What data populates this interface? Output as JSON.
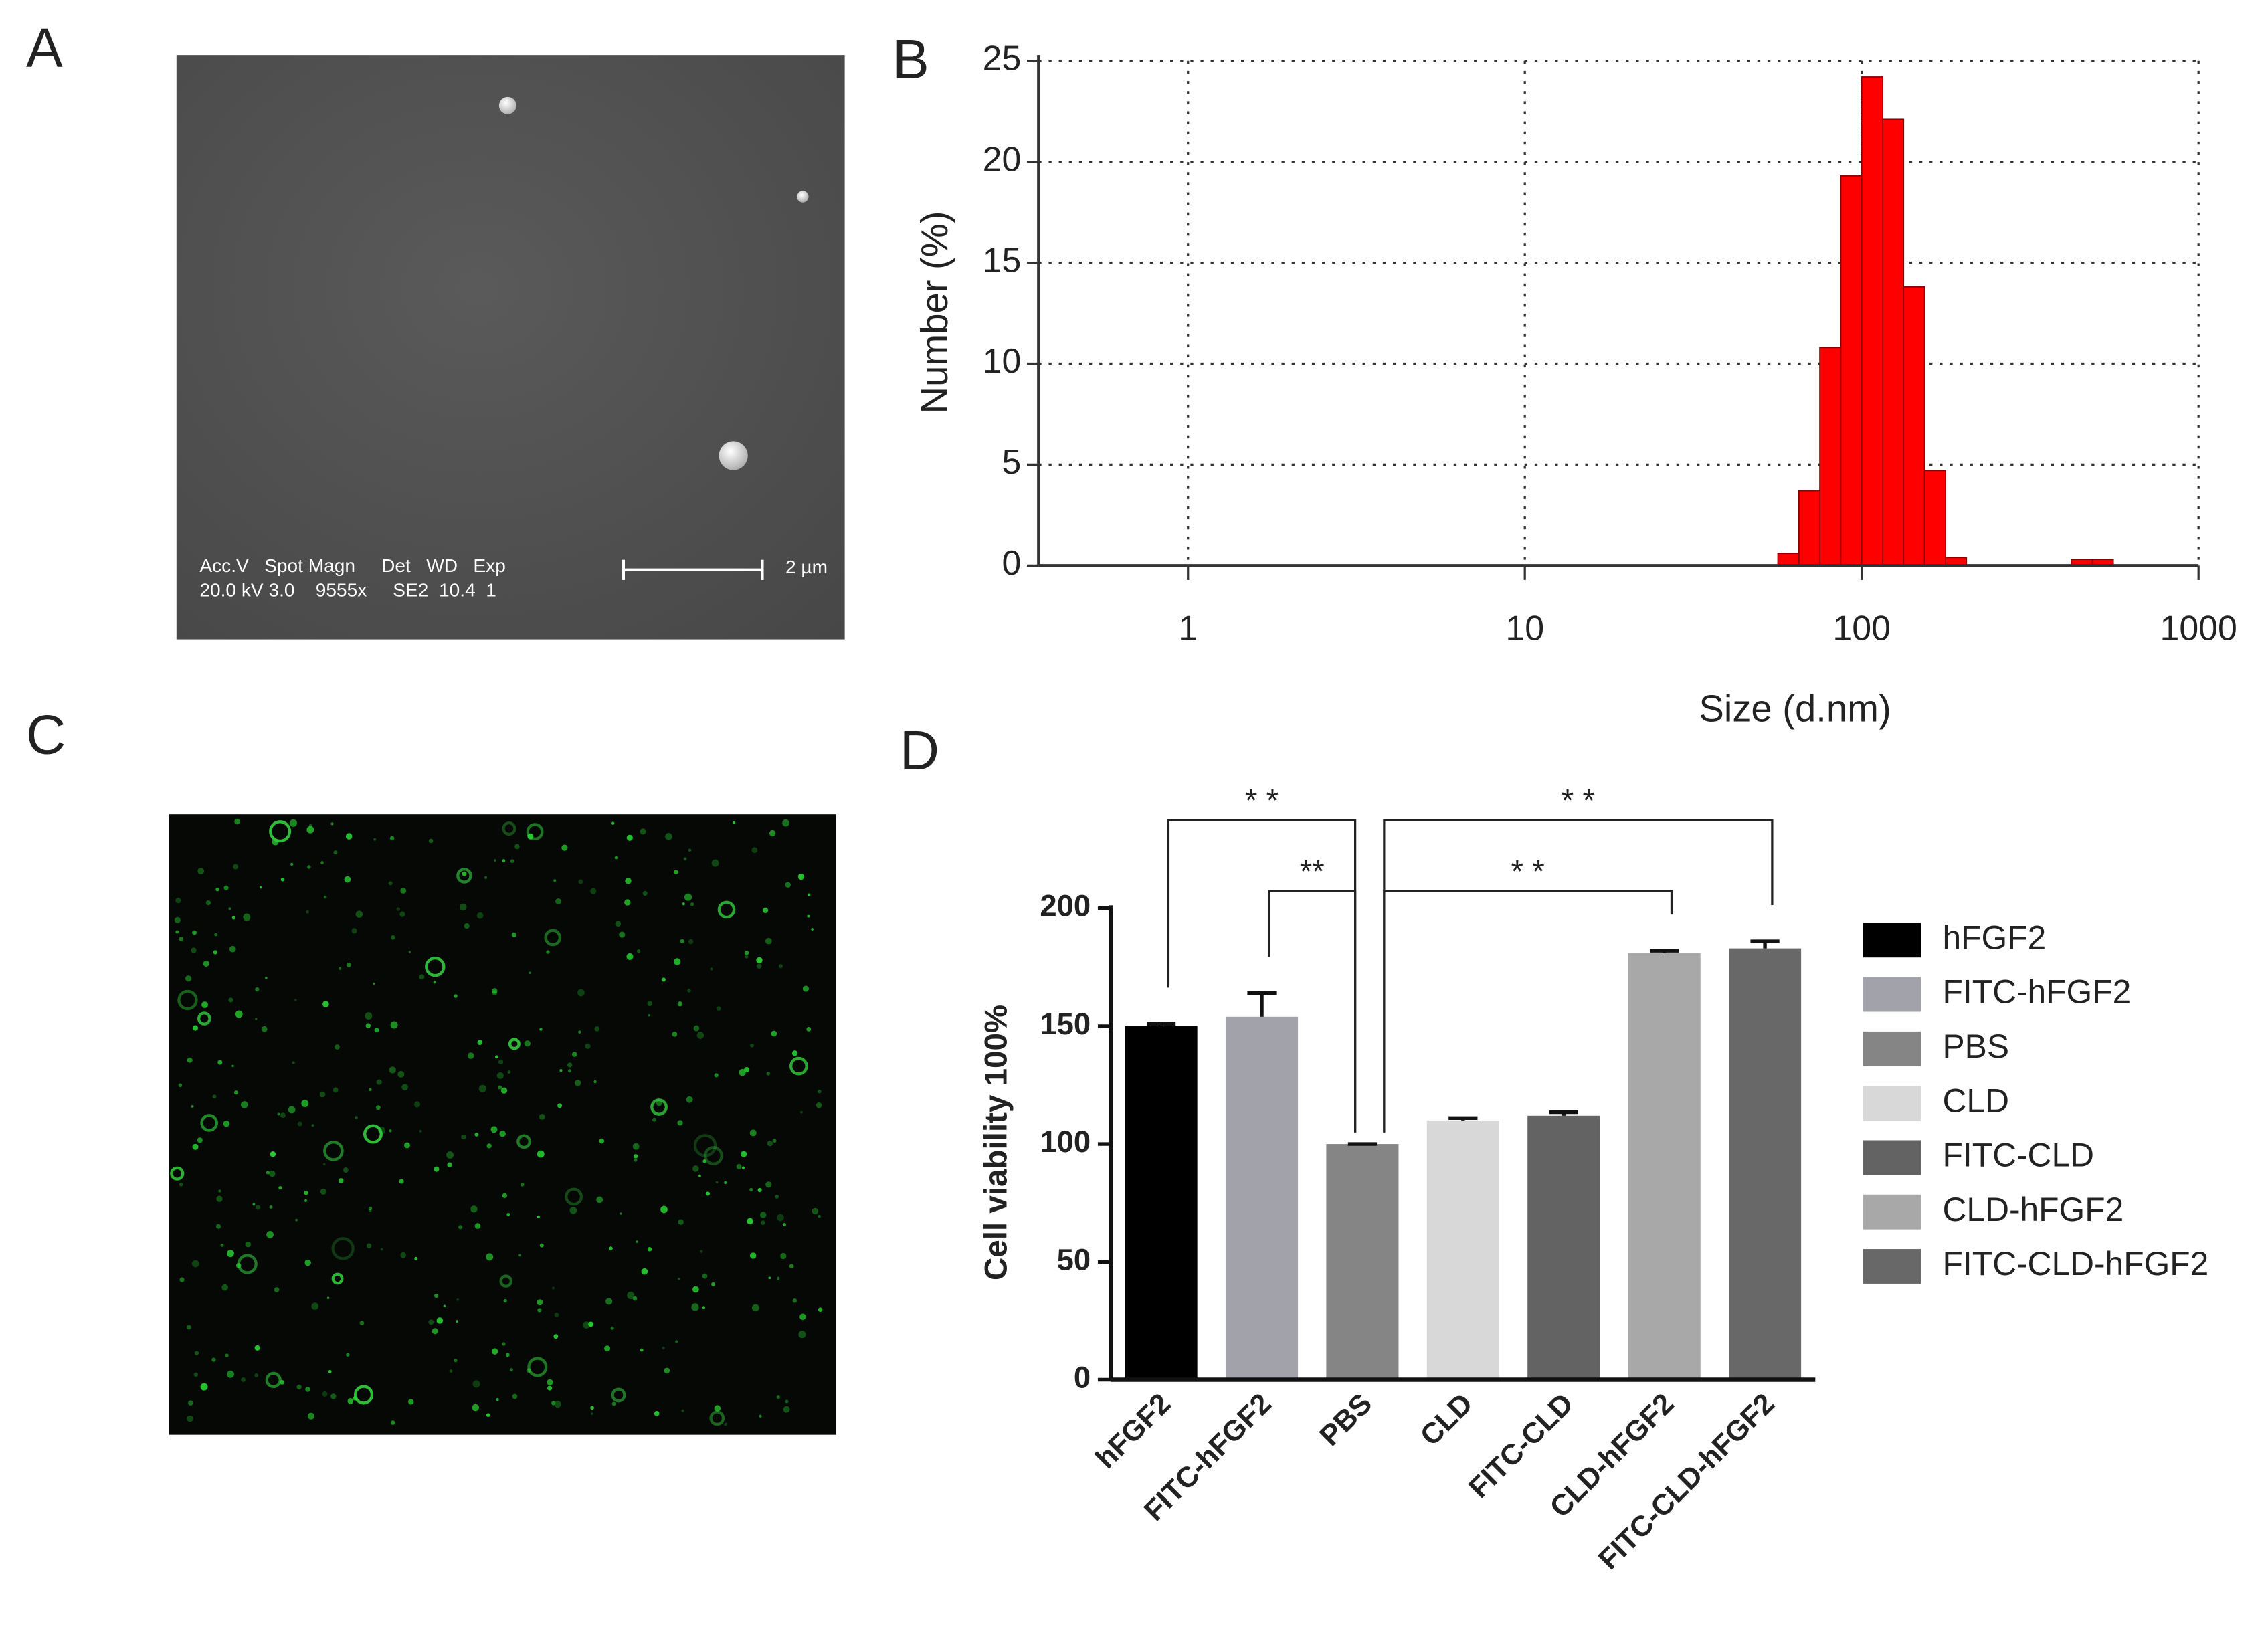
{
  "panel_labels": [
    "A",
    "B",
    "C",
    "D"
  ],
  "sem_annotation": {
    "header": "Acc.V   Spot Magn     Det   WD   Exp",
    "values": "20.0 kV 3.0    9555x     SE2  10.4  1",
    "scale": "2 µm"
  },
  "chart_data": [
    {
      "type": "histogram",
      "xlabel": "Size (d.nm)",
      "ylabel": "Number (%)",
      "bins": [
        56.4,
        65.1,
        75.1,
        86.7,
        100,
        115.4,
        133.1,
        153.6,
        177.3,
        204.6,
        236.1,
        272.5,
        314.5,
        363,
        419,
        483.6,
        558.1
      ],
      "values": [
        0.6,
        3.7,
        10.8,
        19.3,
        24.2,
        22.1,
        13.8,
        4.7,
        0.4,
        0,
        0,
        0,
        0,
        0,
        0.3,
        0.3
      ],
      "color": "#ff0000",
      "xscale": "log",
      "xlim": [
        0.36,
        1000
      ],
      "xticks": [
        1,
        10,
        100,
        1000
      ],
      "ylim": [
        0,
        25
      ],
      "yticks": [
        0,
        5,
        10,
        15,
        20,
        25
      ],
      "grid": true
    },
    {
      "type": "bar",
      "ylabel": "Cell viability 100%",
      "categories": [
        "hFGF2",
        "FITC-hFGF2",
        "PBS",
        "CLD",
        "FITC-CLD",
        "CLD-hFGF2",
        "FITC-CLD-hFGF2"
      ],
      "values": [
        150,
        154,
        100,
        110,
        112,
        181,
        183
      ],
      "errors": [
        1,
        10,
        0,
        1,
        1.5,
        1,
        3
      ],
      "colors": [
        "#000000",
        "#a2a2aa",
        "#858585",
        "#d8d8d8",
        "#636363",
        "#a8a8a8",
        "#686868"
      ],
      "ylim": [
        0,
        200
      ],
      "yticks": [
        0,
        50,
        100,
        150,
        200
      ],
      "legend": "right",
      "annotations": [
        {
          "text": "* *",
          "between": [
            0,
            2
          ],
          "level": 1
        },
        {
          "text": "**",
          "between": [
            1,
            2
          ],
          "level": 2
        },
        {
          "text": "* *",
          "between": [
            2,
            5
          ],
          "level": 2
        },
        {
          "text": "* *",
          "between": [
            2,
            6
          ],
          "level": 1
        }
      ]
    }
  ]
}
